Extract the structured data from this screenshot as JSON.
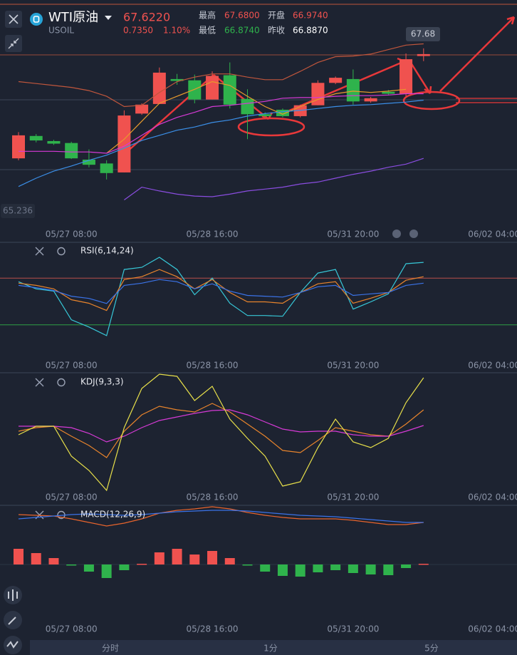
{
  "header": {
    "name": "WTI原油",
    "price": "67.6220",
    "symbol": "USOIL",
    "change": "0.7350",
    "change_pct": "1.10%",
    "stats": [
      {
        "label": "最高",
        "value": "67.6800"
      },
      {
        "label": "开盘",
        "value": "66.9740"
      },
      {
        "label": "最低",
        "value": "66.8740"
      },
      {
        "label": "昨收",
        "value": "66.8870"
      }
    ]
  },
  "tabs": [
    "分时",
    "1分",
    "5分"
  ],
  "chart_data": [
    {
      "type": "candlestick",
      "up_color": "#f0524f",
      "down_color": "#2fb34c",
      "categories": [
        null,
        null,
        null,
        "05/27 08:00",
        null,
        null,
        null,
        null,
        null,
        null,
        null,
        "05/28 16:00",
        null,
        null,
        null,
        null,
        null,
        null,
        null,
        "05/31 20:00",
        null,
        null,
        null,
        null,
        null,
        null,
        null,
        "06/02 04:00"
      ],
      "open": [
        66.06,
        66.41,
        66.33,
        66.3,
        66.04,
        65.98,
        65.84,
        66.76,
        66.91,
        67.3,
        67.28,
        66.98,
        67.36,
        66.99,
        66.75,
        66.82,
        66.72,
        66.89,
        67.24,
        67.3,
        66.95,
        67.1,
        67.07,
        67.66,
        null,
        null,
        null,
        null
      ],
      "high": [
        66.47,
        66.44,
        66.35,
        66.32,
        66.2,
        66.03,
        66.81,
        66.92,
        67.48,
        67.38,
        67.37,
        67.42,
        67.56,
        67.14,
        66.78,
        66.84,
        66.9,
        67.28,
        67.34,
        67.45,
        67.02,
        67.13,
        67.7,
        67.78,
        null,
        null,
        null,
        null
      ],
      "low": [
        66.03,
        66.31,
        66.27,
        66.05,
        65.92,
        65.73,
        65.84,
        66.74,
        66.91,
        67.21,
        66.92,
        66.98,
        66.84,
        66.36,
        66.7,
        66.7,
        66.7,
        66.89,
        67.22,
        66.9,
        66.93,
        67.05,
        67.03,
        67.58,
        null,
        null,
        null,
        null
      ],
      "close": [
        66.42,
        66.34,
        66.29,
        66.06,
        65.96,
        65.83,
        66.73,
        66.9,
        67.4,
        67.27,
        66.98,
        67.35,
        66.9,
        66.75,
        66.72,
        66.72,
        66.89,
        67.24,
        67.32,
        66.95,
        67.0,
        67.07,
        67.61,
        67.69,
        null,
        null,
        null,
        null
      ],
      "series": [
        {
          "color": "#c0563c",
          "values": [
            67.26,
            67.23,
            67.2,
            67.17,
            67.12,
            67.03,
            66.87,
            66.89,
            67.09,
            67.26,
            67.33,
            67.38,
            67.38,
            67.33,
            67.29,
            67.29,
            67.42,
            67.56,
            67.65,
            67.66,
            67.69,
            67.76,
            67.83,
            67.85,
            null,
            null,
            null,
            null
          ]
        },
        {
          "color": "#e89a2c",
          "values": [
            null,
            null,
            null,
            null,
            null,
            66.14,
            66.36,
            66.64,
            66.92,
            67.03,
            67.14,
            67.26,
            67.2,
            67.03,
            66.87,
            66.75,
            66.87,
            66.98,
            67.07,
            67.11,
            67.09,
            67.11,
            67.14,
            null,
            null,
            null,
            null,
            null
          ]
        },
        {
          "color": "#d63ad6",
          "values": [
            66.17,
            66.17,
            66.17,
            66.16,
            66.16,
            66.14,
            66.25,
            66.42,
            66.59,
            66.7,
            66.78,
            66.87,
            66.89,
            66.92,
            66.95,
            67.0,
            67.01,
            67.01,
            67.03,
            67.04,
            67.04,
            67.05,
            67.07,
            67.07,
            null,
            null,
            null,
            null
          ]
        },
        {
          "color": "#3b8fe8",
          "values": [
            65.62,
            65.75,
            65.86,
            65.94,
            66.03,
            66.11,
            66.22,
            66.34,
            66.42,
            66.5,
            66.55,
            66.62,
            66.66,
            66.72,
            66.76,
            66.79,
            66.81,
            66.84,
            66.87,
            66.89,
            66.9,
            66.92,
            66.94,
            66.97,
            null,
            null,
            null,
            null
          ]
        },
        {
          "color": "#8a4de0",
          "values": [
            null,
            null,
            null,
            null,
            null,
            null,
            65.41,
            65.61,
            65.55,
            65.5,
            65.47,
            65.46,
            65.5,
            65.55,
            65.58,
            65.61,
            65.66,
            65.69,
            65.75,
            65.81,
            65.86,
            65.92,
            65.97,
            66.06,
            null,
            null,
            null,
            null
          ]
        }
      ],
      "annotations": [
        "67.68",
        "65.236"
      ],
      "ylim": [
        64.97,
        68.09
      ]
    },
    {
      "type": "line",
      "title": "RSI(6,14,24)",
      "categories": [
        null,
        null,
        null,
        "05/27 08:00",
        null,
        null,
        null,
        null,
        null,
        null,
        null,
        "05/28 16:00",
        null,
        null,
        null,
        null,
        null,
        null,
        null,
        "05/31 20:00",
        null,
        null,
        null,
        null,
        null,
        null,
        null,
        "06/02 04:00"
      ],
      "series": [
        {
          "color": "#37c8d8",
          "values": [
            66.9,
            60.8,
            58.9,
            34.3,
            28.2,
            20.8,
            77.4,
            79.2,
            87.8,
            77.4,
            55.8,
            70.0,
            48.5,
            38.0,
            38.0,
            37.4,
            57.7,
            74.3,
            77.4,
            43.5,
            49.7,
            56.5,
            82.3,
            83.5,
            null,
            null,
            null,
            null
          ]
        },
        {
          "color": "#e8842c",
          "values": [
            65.7,
            63.8,
            60.8,
            51.5,
            48.5,
            42.3,
            68.8,
            71.2,
            77.4,
            71.2,
            60.8,
            68.8,
            57.7,
            49.7,
            49.7,
            48.5,
            57.7,
            65.1,
            66.9,
            48.5,
            52.8,
            57.7,
            68.2,
            71.2,
            null,
            null,
            null,
            null
          ]
        },
        {
          "color": "#3b73e8",
          "values": [
            63.8,
            61.8,
            59.4,
            54.5,
            52.6,
            48.3,
            63.8,
            65.7,
            68.8,
            66.9,
            60.8,
            65.1,
            58.9,
            55.2,
            54.5,
            53.8,
            57.7,
            62.6,
            63.8,
            55.2,
            56.5,
            57.7,
            63.8,
            65.7,
            null,
            null,
            null,
            null
          ]
        }
      ],
      "hlines": [
        {
          "value": 70,
          "color": "#b8504a"
        },
        {
          "value": 30,
          "color": "#2e9e44"
        }
      ],
      "ylim": [
        0,
        100
      ]
    },
    {
      "type": "line",
      "title": "KDJ(9,3,3)",
      "categories": [
        null,
        null,
        null,
        "05/27 08:00",
        null,
        null,
        null,
        null,
        null,
        null,
        null,
        "05/28 16:00",
        null,
        null,
        null,
        null,
        null,
        null,
        null,
        "05/31 20:00",
        null,
        null,
        null,
        null,
        null,
        null,
        null,
        "06/02 04:00"
      ],
      "series": [
        {
          "color": "#e8842c",
          "values": [
            55.3,
            58.7,
            60.0,
            50.7,
            42.0,
            30.7,
            55.3,
            70.7,
            78.7,
            75.3,
            73.3,
            81.3,
            73.3,
            62.0,
            50.7,
            37.3,
            35.3,
            46.7,
            58.7,
            55.3,
            52.0,
            50.7,
            62.0,
            75.3,
            null,
            null,
            null,
            null
          ]
        },
        {
          "color": "#d63ad6",
          "values": [
            60.0,
            60.0,
            60.0,
            58.7,
            53.3,
            45.3,
            50.7,
            58.7,
            65.3,
            68.7,
            72.0,
            74.7,
            75.3,
            70.7,
            64.0,
            57.3,
            54.7,
            55.3,
            55.3,
            52.0,
            50.7,
            50.7,
            55.3,
            60.7,
            null,
            null,
            null,
            null
          ]
        },
        {
          "color": "#e8e04a",
          "values": [
            52.0,
            60.0,
            60.0,
            32.0,
            18.7,
            0,
            58.7,
            95.3,
            108.7,
            106.7,
            84.0,
            97.3,
            66.7,
            48.7,
            32.0,
            4.0,
            8.0,
            40.0,
            66.7,
            45.3,
            40.0,
            48.7,
            82.0,
            105.3,
            null,
            null,
            null,
            null
          ]
        }
      ],
      "ylim": [
        0,
        110
      ]
    },
    {
      "type": "combo",
      "title": "MACD(12,26,9)",
      "up_color": "#f0524f",
      "down_color": "#2fb34c",
      "categories": [
        null,
        null,
        null,
        "05/27 08:00",
        null,
        null,
        null,
        null,
        null,
        null,
        null,
        "05/28 16:00",
        null,
        null,
        null,
        null,
        null,
        null,
        null,
        "05/31 20:00",
        null,
        null,
        null,
        null,
        null,
        null,
        null,
        "06/02 04:00"
      ],
      "values": [
        0.11,
        0.08,
        0.045,
        -0.005,
        -0.05,
        -0.095,
        -0.04,
        0.005,
        0.085,
        0.11,
        0.07,
        0.095,
        0.045,
        -0.005,
        -0.05,
        -0.08,
        -0.085,
        -0.055,
        -0.04,
        -0.06,
        -0.07,
        -0.075,
        -0.025,
        0.005,
        null,
        null,
        null,
        null
      ],
      "series": [
        {
          "color": "#e8642c",
          "values": [
            0.35,
            0.345,
            0.34,
            0.32,
            0.295,
            0.27,
            0.29,
            0.32,
            0.36,
            0.38,
            0.39,
            0.405,
            0.39,
            0.365,
            0.345,
            0.33,
            0.32,
            0.32,
            0.32,
            0.31,
            0.295,
            0.28,
            0.28,
            0.295,
            null,
            null,
            null,
            null
          ]
        },
        {
          "color": "#3b73e8",
          "values": [
            0.32,
            0.33,
            0.34,
            0.35,
            0.355,
            0.35,
            0.345,
            0.35,
            0.36,
            0.37,
            0.375,
            0.38,
            0.38,
            0.375,
            0.365,
            0.355,
            0.345,
            0.34,
            0.335,
            0.325,
            0.315,
            0.305,
            0.295,
            0.295,
            null,
            null,
            null,
            null
          ]
        }
      ],
      "ylim": [
        -0.45,
        0.45
      ]
    }
  ]
}
